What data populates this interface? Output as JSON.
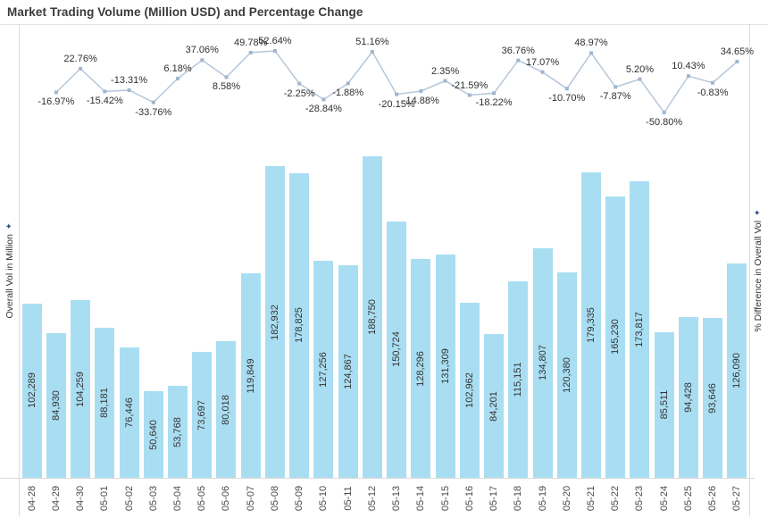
{
  "title": "Market Trading Volume (Million USD) and Percentage Change",
  "left_axis": {
    "label": "Overall Vol in Million",
    "icon": "pin-icon"
  },
  "right_axis": {
    "label": "% Difference in Overall Vol",
    "icon": "pin-icon"
  },
  "icons": {
    "axis_pin_glyph": "✦"
  },
  "colors": {
    "bar_fill": "#a9def2",
    "line_stroke": "#b5c7da",
    "marker_fill": "#9fb6ce",
    "label_text": "#2f2f2f",
    "bar_label_text": "#333333",
    "date_label_text": "#4a4a4a",
    "axis_pin": "#27477e",
    "border": "#dcdcdc"
  },
  "chart_data": [
    {
      "type": "line",
      "name": "% Difference in Overall Vol",
      "x": [
        "04-29",
        "04-30",
        "05-01",
        "05-02",
        "05-03",
        "05-04",
        "05-05",
        "05-06",
        "05-07",
        "05-08",
        "05-09",
        "05-10",
        "05-11",
        "05-12",
        "05-13",
        "05-14",
        "05-15",
        "05-16",
        "05-17",
        "05-18",
        "05-19",
        "05-20",
        "05-21",
        "05-22",
        "05-23",
        "05-24",
        "05-25",
        "05-26",
        "05-27"
      ],
      "values": [
        -16.97,
        22.76,
        -15.42,
        -13.31,
        -33.76,
        6.18,
        37.06,
        8.58,
        49.78,
        52.64,
        -2.25,
        -28.84,
        -1.88,
        51.16,
        -20.15,
        -14.88,
        2.35,
        -21.59,
        -18.22,
        36.76,
        17.07,
        -10.7,
        48.97,
        -7.87,
        5.2,
        -50.8,
        10.43,
        -0.83,
        34.65
      ],
      "labels": [
        "-16.97%",
        "22.76%",
        "-15.42%",
        "-13.31%",
        "-33.76%",
        "6.18%",
        "37.06%",
        "8.58%",
        "49.78%",
        "52.64%",
        "-2.25%",
        "-28.84%",
        "-1.88%",
        "51.16%",
        "-20.15%",
        "-14.88%",
        "2.35%",
        "-21.59%",
        "-18.22%",
        "36.76%",
        "17.07%",
        "-10.70%",
        "48.97%",
        "-7.87%",
        "5.20%",
        "-50.80%",
        "10.43%",
        "-0.83%",
        "34.65%"
      ],
      "label_positions": [
        "below",
        "above",
        "below",
        "above",
        "below",
        "above",
        "above",
        "below",
        "above",
        "above",
        "below",
        "below",
        "below",
        "above",
        "below",
        "below",
        "above",
        "above",
        "below",
        "above",
        "above",
        "below",
        "above",
        "below",
        "above",
        "below",
        "above",
        "below",
        "above"
      ],
      "ylabel": "% Difference in Overall Vol",
      "ylim": [
        -60,
        60
      ],
      "grid": false,
      "marker": "square",
      "legend": "none"
    },
    {
      "type": "bar",
      "name": "Overall Vol in Million",
      "categories": [
        "04-28",
        "04-29",
        "04-30",
        "05-01",
        "05-02",
        "05-03",
        "05-04",
        "05-05",
        "05-06",
        "05-07",
        "05-08",
        "05-09",
        "05-10",
        "05-11",
        "05-12",
        "05-13",
        "05-14",
        "05-15",
        "05-16",
        "05-17",
        "05-18",
        "05-19",
        "05-20",
        "05-21",
        "05-22",
        "05-23",
        "05-24",
        "05-25",
        "05-26",
        "05-27"
      ],
      "values": [
        102289,
        84930,
        104259,
        88181,
        76446,
        50640,
        53768,
        73697,
        80018,
        119849,
        182932,
        178825,
        127256,
        124867,
        188750,
        150724,
        128296,
        131309,
        102962,
        84201,
        115151,
        134807,
        120380,
        179335,
        165230,
        173817,
        85511,
        94428,
        93646,
        126090
      ],
      "labels": [
        "102,289",
        "84,930",
        "104,259",
        "88,181",
        "76,446",
        "50,640",
        "53,768",
        "73,697",
        "80,018",
        "119,849",
        "182,932",
        "178,825",
        "127,256",
        "124,867",
        "188,750",
        "150,724",
        "128,296",
        "131,309",
        "102,962",
        "84,201",
        "115,151",
        "134,807",
        "120,380",
        "179,335",
        "165,230",
        "173,817",
        "85,511",
        "94,428",
        "93,646",
        "126,090"
      ],
      "ylabel": "Overall Vol in Million",
      "ylim": [
        0,
        190000
      ],
      "grid": false,
      "legend": "none"
    }
  ]
}
